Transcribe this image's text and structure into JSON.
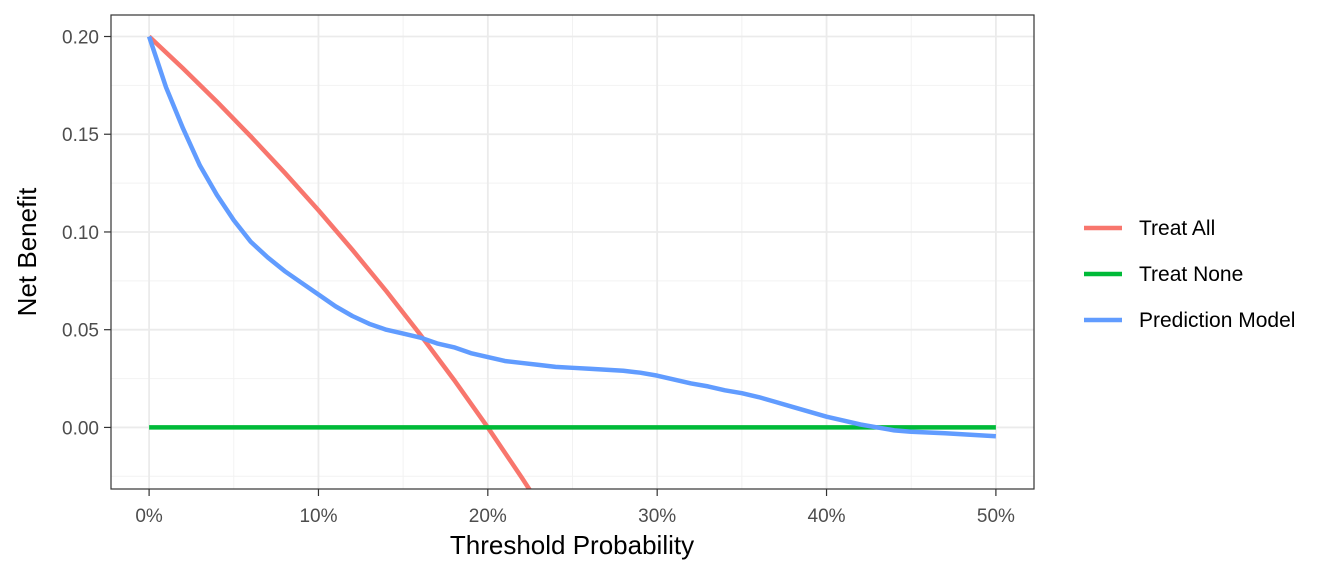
{
  "chart_data": {
    "type": "line",
    "title": "",
    "xlabel": "Threshold Probability",
    "ylabel": "Net Benefit",
    "xlim": [
      -0.0225,
      0.5225
    ],
    "ylim": [
      -0.0315,
      0.211
    ],
    "x_ticks": [
      0,
      0.1,
      0.2,
      0.3,
      0.4,
      0.5
    ],
    "x_tick_labels": [
      "0%",
      "10%",
      "20%",
      "30%",
      "40%",
      "50%"
    ],
    "y_ticks": [
      0,
      0.05,
      0.1,
      0.15,
      0.2
    ],
    "y_tick_labels": [
      "0.00",
      "0.05",
      "0.10",
      "0.15",
      "0.20"
    ],
    "grid": true,
    "legend_position": "right",
    "series": [
      {
        "name": "Treat All",
        "color": "#F8766D",
        "x": [
          0,
          0.02,
          0.04,
          0.06,
          0.08,
          0.1,
          0.12,
          0.14,
          0.16,
          0.18,
          0.2,
          0.22,
          0.225
        ],
        "y": [
          0.2,
          0.1837,
          0.1667,
          0.1489,
          0.1304,
          0.1111,
          0.0909,
          0.0698,
          0.0476,
          0.0244,
          0.0,
          -0.0256,
          -0.0323
        ]
      },
      {
        "name": "Treat None",
        "color": "#00BA38",
        "x": [
          0,
          0.5
        ],
        "y": [
          0,
          0
        ]
      },
      {
        "name": "Prediction Model",
        "color": "#619CFF",
        "x": [
          0,
          0.01,
          0.02,
          0.03,
          0.04,
          0.05,
          0.06,
          0.07,
          0.08,
          0.09,
          0.1,
          0.11,
          0.12,
          0.13,
          0.14,
          0.15,
          0.16,
          0.17,
          0.18,
          0.19,
          0.2,
          0.21,
          0.22,
          0.23,
          0.24,
          0.25,
          0.26,
          0.27,
          0.28,
          0.29,
          0.3,
          0.31,
          0.32,
          0.33,
          0.34,
          0.35,
          0.36,
          0.37,
          0.38,
          0.39,
          0.4,
          0.41,
          0.42,
          0.43,
          0.44,
          0.45,
          0.46,
          0.47,
          0.48,
          0.49,
          0.5
        ],
        "y": [
          0.2,
          0.174,
          0.153,
          0.134,
          0.119,
          0.106,
          0.095,
          0.087,
          0.08,
          0.074,
          0.068,
          0.062,
          0.057,
          0.053,
          0.05,
          0.048,
          0.046,
          0.043,
          0.041,
          0.038,
          0.036,
          0.034,
          0.033,
          0.032,
          0.031,
          0.0305,
          0.03,
          0.0295,
          0.029,
          0.028,
          0.0265,
          0.0245,
          0.0225,
          0.021,
          0.019,
          0.0175,
          0.0155,
          0.013,
          0.0105,
          0.008,
          0.0055,
          0.0035,
          0.0015,
          0.0,
          -0.0015,
          -0.0022,
          -0.0026,
          -0.003,
          -0.0035,
          -0.004,
          -0.0045
        ]
      }
    ]
  }
}
